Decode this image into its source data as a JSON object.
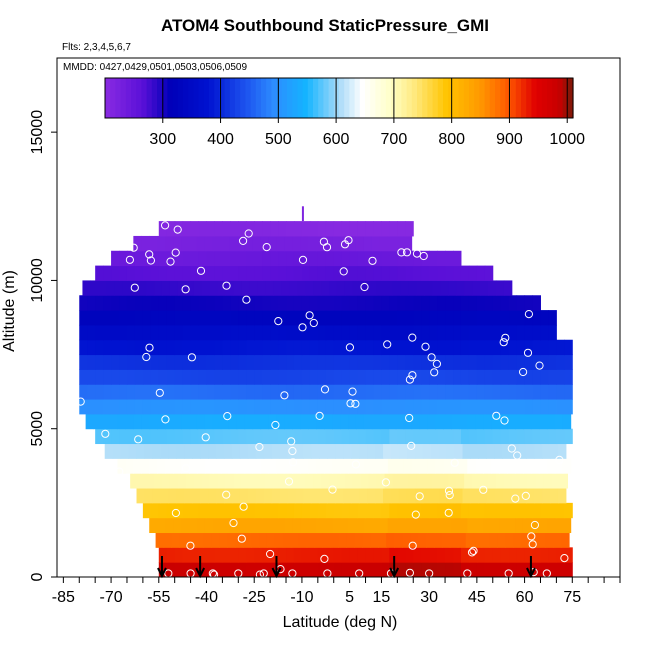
{
  "header": {
    "title": "ATOM4 Southbound StaticPressure_GMI",
    "flights_text": "Flts: 2,3,4,5,6,7",
    "dates_text": "MMDD: 0427,0429,0501,0503,0506,0509"
  },
  "chart_data": {
    "type": "heatmap",
    "title": "ATOM4 Southbound StaticPressure_GMI",
    "xlabel": "Latitude (deg N)",
    "ylabel": "Altitude (m)",
    "xlim": [
      -87,
      90
    ],
    "ylim": [
      0,
      17500
    ],
    "x_ticks": [
      -85,
      -70,
      -55,
      -40,
      -25,
      -10,
      5,
      15,
      30,
      45,
      60,
      75
    ],
    "x_tick_labels": [
      "-85",
      "-70",
      "-55",
      "-40",
      "-25",
      "-10",
      "5",
      "15",
      "30",
      "45",
      "60",
      "75"
    ],
    "y_ticks": [
      0,
      5000,
      10000,
      15000
    ],
    "y_tick_labels": [
      "0",
      "5000",
      "10000",
      "15000"
    ],
    "colorbar": {
      "min": 200,
      "max": 1010,
      "tick_labels": [
        "300",
        "400",
        "500",
        "600",
        "700",
        "800",
        "900",
        "1000"
      ],
      "tick_values": [
        300,
        400,
        500,
        600,
        700,
        800,
        900,
        1000
      ]
    },
    "altitude_layers_m": [
      250,
      750,
      1250,
      1750,
      2250,
      2750,
      3250,
      3750,
      4250,
      4750,
      5250,
      5750,
      6250,
      6750,
      7250,
      7750,
      8250,
      8750,
      9250,
      9750,
      10250,
      10750,
      11250,
      11750
    ],
    "pressure_hPa": [
      980,
      930,
      885,
      830,
      790,
      745,
      705,
      650,
      610,
      575,
      535,
      500,
      465,
      430,
      410,
      380,
      355,
      330,
      305,
      285,
      265,
      245,
      225,
      208
    ],
    "lat_extent_left": [
      -55,
      -55,
      -56,
      -58,
      -60,
      -62,
      -64,
      -68,
      -72,
      -75,
      -78,
      -80,
      -80,
      -80,
      -80,
      -80,
      -80,
      -80,
      -80,
      -79,
      -75,
      -70,
      -63,
      -55
    ],
    "lat_extent_right": [
      73,
      73,
      73,
      73,
      73,
      73,
      73,
      73,
      73,
      73,
      73,
      73,
      73,
      73,
      73,
      73,
      70,
      68,
      65,
      55,
      48,
      38,
      24,
      24
    ],
    "markers": {
      "profile_latitudes": [
        -54,
        -42,
        -18,
        19,
        62
      ]
    }
  }
}
